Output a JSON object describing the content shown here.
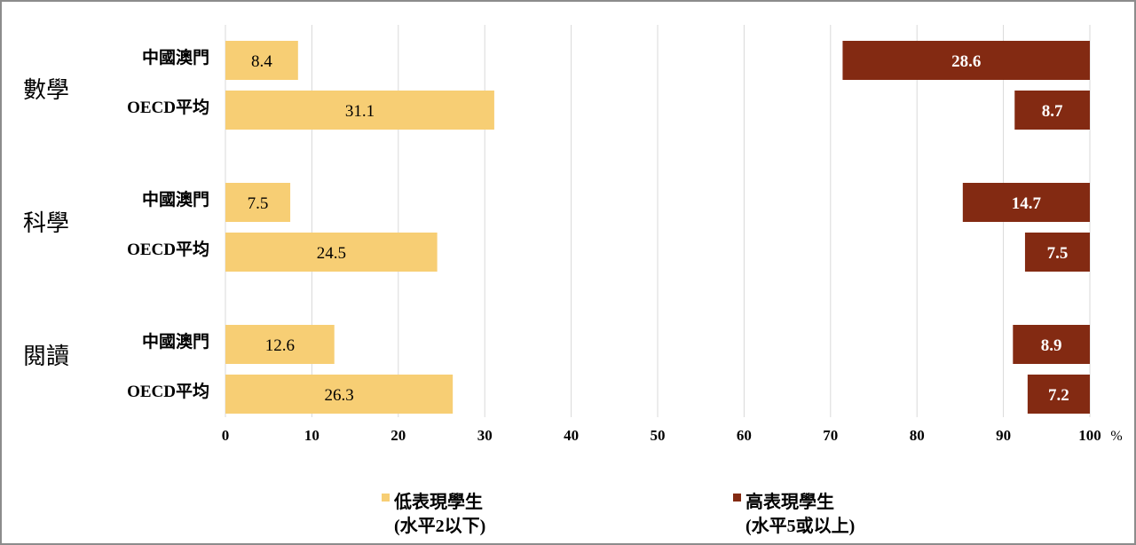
{
  "chart_data": {
    "type": "bar",
    "orientation": "horizontal",
    "groups": [
      "數學",
      "科學",
      "閱讀"
    ],
    "rows": [
      "中國澳門",
      "OECD平均"
    ],
    "x_ticks": [
      "0",
      "10",
      "20",
      "30",
      "40",
      "50",
      "60",
      "70",
      "80",
      "90",
      "100"
    ],
    "x_unit": "%",
    "xlim": [
      0,
      100
    ],
    "grid": true,
    "legend_position": "bottom",
    "series": [
      {
        "name": "低表現學生\n(水平2以下)",
        "legend_line1": "低表現學生",
        "legend_line2": "(水平2以下)",
        "color": "#f7ce74",
        "anchor": "left",
        "values": [
          [
            8.4,
            31.1
          ],
          [
            7.5,
            24.5
          ],
          [
            12.6,
            26.3
          ]
        ],
        "labels": [
          [
            "8.4",
            "31.1"
          ],
          [
            "7.5",
            "24.5"
          ],
          [
            "12.6",
            "26.3"
          ]
        ]
      },
      {
        "name": "高表現學生\n(水平5或以上)",
        "legend_line1": "高表現學生",
        "legend_line2": "(水平5或以上)",
        "color": "#832a12",
        "anchor": "right",
        "values": [
          [
            28.6,
            8.7
          ],
          [
            14.7,
            7.5
          ],
          [
            8.9,
            7.2
          ]
        ],
        "labels": [
          [
            "28.6",
            "8.7"
          ],
          [
            "14.7",
            "7.5"
          ],
          [
            "8.9",
            "7.2"
          ]
        ]
      }
    ]
  }
}
